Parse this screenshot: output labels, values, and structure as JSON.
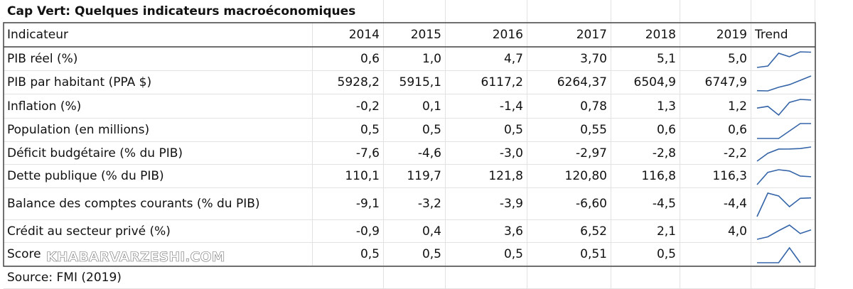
{
  "title": "Cap Vert:  Quelques indicateurs macroéconomiques",
  "table": {
    "header": [
      "Indicateur",
      "2014",
      "2015",
      "2016",
      "2017",
      "2018",
      "2019",
      "Trend"
    ],
    "rows": [
      [
        "PIB réel (%)",
        "0,6",
        "1,0",
        "4,7",
        "3,70",
        "5,1",
        "5,0"
      ],
      [
        "PIB par habitant (PPA $)",
        "5928,2",
        "5915,1",
        "6117,2",
        "6264,37",
        "6504,9",
        "6747,9"
      ],
      [
        "Inflation (%)",
        "-0,2",
        "0,1",
        "-1,4",
        "0,78",
        "1,3",
        "1,2"
      ],
      [
        "Population (en millions)",
        "0,5",
        "0,5",
        "0,5",
        "0,55",
        "0,6",
        "0,6"
      ],
      [
        "Déficit budgétaire (% du PIB)",
        "-7,6",
        "-4,6",
        "-3,0",
        "-2,97",
        "-2,8",
        "-2,2"
      ],
      [
        "Dette publique (% du PIB)",
        "110,1",
        "119,7",
        "121,8",
        "120,80",
        "116,8",
        "116,3"
      ],
      [
        "Balance des comptes courants (% du PIB)",
        "-9,1",
        "-3,2",
        "-3,9",
        "-6,60",
        "-4,5",
        "-4,4"
      ],
      [
        "Crédit au secteur privé (%)",
        "-0,9",
        "0,4",
        "3,6",
        "6,52",
        "2,1",
        "4,0"
      ],
      [
        "Score",
        "0,5",
        "0,5",
        "0,5",
        "0,51",
        "0,5",
        null
      ]
    ]
  },
  "source": "Source: FMI (2019)",
  "watermark": "KHABARVARZESHI.COM"
}
